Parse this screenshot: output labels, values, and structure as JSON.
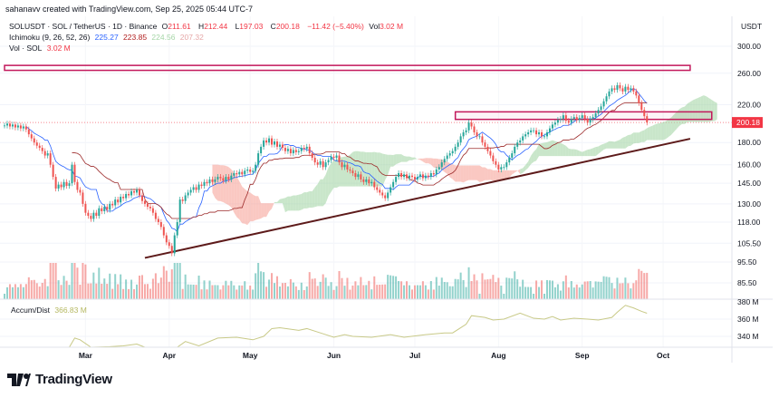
{
  "header": {
    "created_by": "sahanavv created with TradingView.com, Sep 25, 2025 05:44 UTC-7",
    "symbol_line": "SOLUSDT · SOL / TetherUS · 1D · Binance",
    "ohlc": {
      "o_label": "O",
      "o": "211.61",
      "h_label": "H",
      "h": "212.44",
      "l_label": "L",
      "l": "197.03",
      "c_label": "C",
      "c": "200.18",
      "change": "−11.42 (−5.40%)",
      "vol_label": "Vol",
      "vol": "3.02 M"
    },
    "ichimoku": {
      "label": "Ichimoku (9, 26, 52, 26)",
      "tenkan": "225.27",
      "kijun": "223.85",
      "span_a": "224.56",
      "span_b": "207.32"
    },
    "volume": {
      "label": "Vol · SOL",
      "value": "3.02 M"
    },
    "accum": {
      "label": "Accum/Dist",
      "value": "366.83 M"
    }
  },
  "colors": {
    "up": "#26a69a",
    "down": "#ef5350",
    "tenkan": "#2962ff",
    "kijun": "#9c2a2a",
    "cloud_up": "#a5d6a7",
    "cloud_down": "#f7a399",
    "zone": "#c2185b",
    "trendline": "#5d1a1a",
    "ad_line": "#c8c987",
    "last_price_bg": "#f23645"
  },
  "brand": {
    "name": "TradingView"
  },
  "chart_data": {
    "type": "candlestick",
    "interval": "1D",
    "last_date": "2025-09-25",
    "y_scale": "log",
    "ylim": [
      80,
      310
    ],
    "currency": "USDT",
    "last_price": "200.18",
    "y_ticks": [
      "300.00",
      "260.00",
      "220.00",
      "180.00",
      "160.00",
      "145.00",
      "130.00",
      "118.00",
      "105.50",
      "95.50",
      "85.50"
    ],
    "x_ticks": [
      "Mar",
      "Apr",
      "May",
      "Jun",
      "Jul",
      "Aug",
      "Sep",
      "Oct"
    ],
    "closes": [
      197,
      199,
      196,
      198,
      195,
      197,
      194,
      196,
      193,
      188,
      184,
      180,
      177,
      175,
      172,
      168,
      170,
      160,
      150,
      141,
      144,
      142,
      146,
      143,
      145,
      160,
      146,
      140,
      138,
      130,
      124,
      122,
      120,
      124,
      122,
      127,
      125,
      128,
      126,
      130,
      129,
      133,
      131,
      135,
      134,
      137,
      136,
      139,
      138,
      140,
      136,
      132,
      130,
      128,
      127,
      124,
      120,
      118,
      115,
      110,
      106,
      104,
      100,
      110,
      118,
      133,
      132,
      136,
      138,
      140,
      142,
      140,
      144,
      143,
      146,
      145,
      148,
      146,
      148,
      150,
      149,
      147,
      150,
      148,
      151,
      153,
      152,
      154,
      152,
      155,
      156,
      154,
      155,
      160,
      170,
      176,
      182,
      180,
      184,
      178,
      181,
      176,
      178,
      175,
      172,
      174,
      170,
      173,
      171,
      172,
      175,
      174,
      176,
      170,
      166,
      162,
      160,
      163,
      158,
      162,
      164,
      167,
      166,
      168,
      162,
      158,
      160,
      156,
      155,
      153,
      150,
      152,
      148,
      146,
      148,
      145,
      146,
      142,
      140,
      138,
      136,
      134,
      138,
      142,
      146,
      150,
      153,
      150,
      152,
      149,
      151,
      150,
      148,
      150,
      152,
      149,
      151,
      150,
      153,
      152,
      156,
      158,
      162,
      165,
      168,
      170,
      172,
      176,
      180,
      186,
      190,
      192,
      200,
      196,
      190,
      186,
      186,
      180,
      176,
      172,
      168,
      163,
      160,
      156,
      158,
      158,
      162,
      166,
      170,
      176,
      180,
      182,
      186,
      188,
      190,
      192,
      192,
      188,
      190,
      186,
      186,
      190,
      194,
      198,
      200,
      203,
      204,
      208,
      202,
      200,
      204,
      206,
      203,
      205,
      208,
      204,
      200,
      204,
      206,
      210,
      214,
      218,
      224,
      230,
      236,
      240,
      238,
      244,
      240,
      236,
      242,
      238,
      240,
      236,
      231,
      222,
      214,
      207,
      200.18
    ],
    "zones": [
      {
        "price_low": 264,
        "price_high": 271,
        "from": "2025-01-30",
        "to": "2025-10-11"
      },
      {
        "price_low": 203.5,
        "price_high": 211.8,
        "from": "2025-07-16",
        "to": "2025-10-19"
      }
    ],
    "trendline": {
      "from": {
        "date": "2025-03-23",
        "price": 97.6
      },
      "to": {
        "date": "2025-10-11",
        "price": 183.6
      }
    },
    "accum_dist": {
      "unit": "M",
      "y_ticks": [
        "380 M",
        "360 M",
        "340 M"
      ],
      "ylim": [
        326,
        383
      ],
      "points": [
        [
          "02-23",
          327
        ],
        [
          "02-25",
          338
        ],
        [
          "02-27",
          336
        ],
        [
          "03-03",
          327
        ],
        [
          "03-10",
          328
        ],
        [
          "03-15",
          329
        ],
        [
          "03-20",
          331
        ],
        [
          "03-23",
          327
        ],
        [
          "04-04",
          327
        ],
        [
          "04-07",
          334
        ],
        [
          "04-12",
          329
        ],
        [
          "04-19",
          338
        ],
        [
          "04-26",
          339
        ],
        [
          "05-02",
          336
        ],
        [
          "05-06",
          340
        ],
        [
          "05-09",
          349
        ],
        [
          "05-12",
          350
        ],
        [
          "05-19",
          347
        ],
        [
          "05-22",
          349
        ],
        [
          "05-27",
          344
        ],
        [
          "06-01",
          339
        ],
        [
          "06-05",
          342
        ],
        [
          "06-08",
          340
        ],
        [
          "06-15",
          339
        ],
        [
          "06-22",
          342
        ],
        [
          "06-27",
          339
        ],
        [
          "07-05",
          342
        ],
        [
          "07-12",
          344
        ],
        [
          "07-15",
          344
        ],
        [
          "07-20",
          354
        ],
        [
          "07-22",
          364
        ],
        [
          "07-27",
          362
        ],
        [
          "07-30",
          359
        ],
        [
          "08-03",
          360
        ],
        [
          "08-09",
          367
        ],
        [
          "08-14",
          361
        ],
        [
          "08-18",
          360
        ],
        [
          "08-21",
          363
        ],
        [
          "08-24",
          359
        ],
        [
          "08-29",
          361
        ],
        [
          "09-03",
          360
        ],
        [
          "09-07",
          359
        ],
        [
          "09-12",
          362
        ],
        [
          "09-14",
          368
        ],
        [
          "09-17",
          376
        ],
        [
          "09-20",
          373
        ],
        [
          "09-23",
          369
        ],
        [
          "09-25",
          366.83
        ]
      ]
    }
  }
}
